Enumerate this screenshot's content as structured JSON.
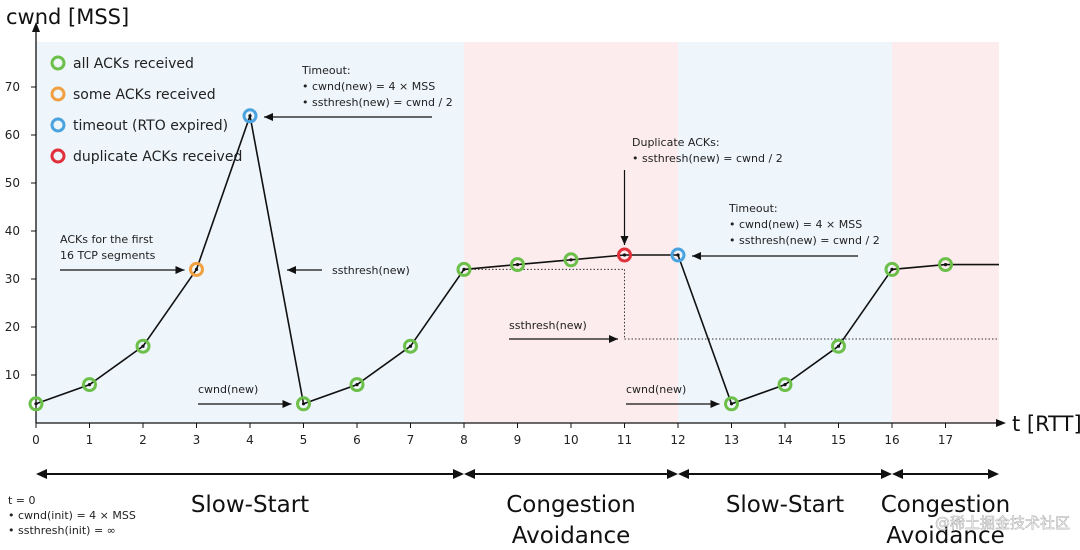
{
  "chart_data": {
    "type": "line",
    "ylabel": "cwnd [MSS]",
    "xlabel": "t [RTT]",
    "xlim": [
      0,
      18
    ],
    "ylim": [
      0,
      75
    ],
    "x_ticks": [
      0,
      1,
      2,
      3,
      4,
      5,
      6,
      7,
      8,
      9,
      10,
      11,
      12,
      13,
      14,
      15,
      16,
      17
    ],
    "y_ticks": [
      10,
      20,
      30,
      40,
      50,
      60,
      70
    ],
    "points": [
      {
        "x": 0,
        "y": 4,
        "event": "all"
      },
      {
        "x": 1,
        "y": 8,
        "event": "all"
      },
      {
        "x": 2,
        "y": 16,
        "event": "all"
      },
      {
        "x": 3,
        "y": 32,
        "event": "some"
      },
      {
        "x": 4,
        "y": 64,
        "event": "timeout"
      },
      {
        "x": 5,
        "y": 4,
        "event": "all"
      },
      {
        "x": 6,
        "y": 8,
        "event": "all"
      },
      {
        "x": 7,
        "y": 16,
        "event": "all"
      },
      {
        "x": 8,
        "y": 32,
        "event": "all"
      },
      {
        "x": 9,
        "y": 33,
        "event": "all"
      },
      {
        "x": 10,
        "y": 34,
        "event": "all"
      },
      {
        "x": 11,
        "y": 35,
        "event": "duplicate"
      },
      {
        "x": 12,
        "y": 35,
        "event": "timeout"
      },
      {
        "x": 13,
        "y": 4,
        "event": "all"
      },
      {
        "x": 14,
        "y": 8,
        "event": "all"
      },
      {
        "x": 15,
        "y": 16,
        "event": "all"
      },
      {
        "x": 16,
        "y": 32,
        "event": "all"
      },
      {
        "x": 17,
        "y": 33,
        "event": "all"
      },
      {
        "x": 18,
        "y": 33,
        "event": "none"
      }
    ],
    "legend": [
      {
        "key": "all",
        "label": "all ACKs received",
        "color": "#6cc04a"
      },
      {
        "key": "some",
        "label": "some ACKs received",
        "color": "#f0a040"
      },
      {
        "key": "timeout",
        "label": "timeout (RTO expired)",
        "color": "#4aa3df"
      },
      {
        "key": "duplicate",
        "label": "duplicate ACKs received",
        "color": "#e0303a"
      }
    ],
    "phases": [
      {
        "name": "Slow-Start",
        "from": 0,
        "to": 8,
        "color": "#eef5fb"
      },
      {
        "name": "Congestion Avoidance",
        "from": 8,
        "to": 12,
        "color": "#fcecee"
      },
      {
        "name": "Slow-Start",
        "from": 12,
        "to": 16,
        "color": "#eef5fb"
      },
      {
        "name": "Congestion Avoidance",
        "from": 16,
        "to": 18,
        "color": "#fcecee"
      }
    ],
    "ssthresh_lines": [
      {
        "x_from": 8,
        "x_to": 11,
        "y": 32
      },
      {
        "x_from": 11,
        "x_to": 18,
        "y": 17.5
      }
    ],
    "annotations": [
      {
        "id": "timeout1",
        "lines": [
          "Timeout:",
          "• cwnd(new) = 4 × MSS",
          "• ssthresh(new) = cwnd / 2"
        ]
      },
      {
        "id": "dup",
        "lines": [
          "Duplicate ACKs:",
          "• ssthresh(new) = cwnd / 2"
        ]
      },
      {
        "id": "timeout2",
        "lines": [
          "Timeout:",
          "• cwnd(new) = 4 × MSS",
          "• ssthresh(new) = cwnd / 2"
        ]
      },
      {
        "id": "first16",
        "lines": [
          "ACKs for the first",
          "16 TCP segments"
        ]
      },
      {
        "id": "ssthresh1",
        "lines": [
          "ssthresh(new)"
        ]
      },
      {
        "id": "ssthresh2",
        "lines": [
          "ssthresh(new)"
        ]
      },
      {
        "id": "cwnd1",
        "lines": [
          "cwnd(new)"
        ]
      },
      {
        "id": "cwnd2",
        "lines": [
          "cwnd(new)"
        ]
      }
    ],
    "init_note": [
      "t = 0",
      "• cwnd(init) = 4 × MSS",
      "• ssthresh(init) = ∞"
    ],
    "watermark": "@稀土掘金技术社区",
    "line_color": "#111111"
  }
}
